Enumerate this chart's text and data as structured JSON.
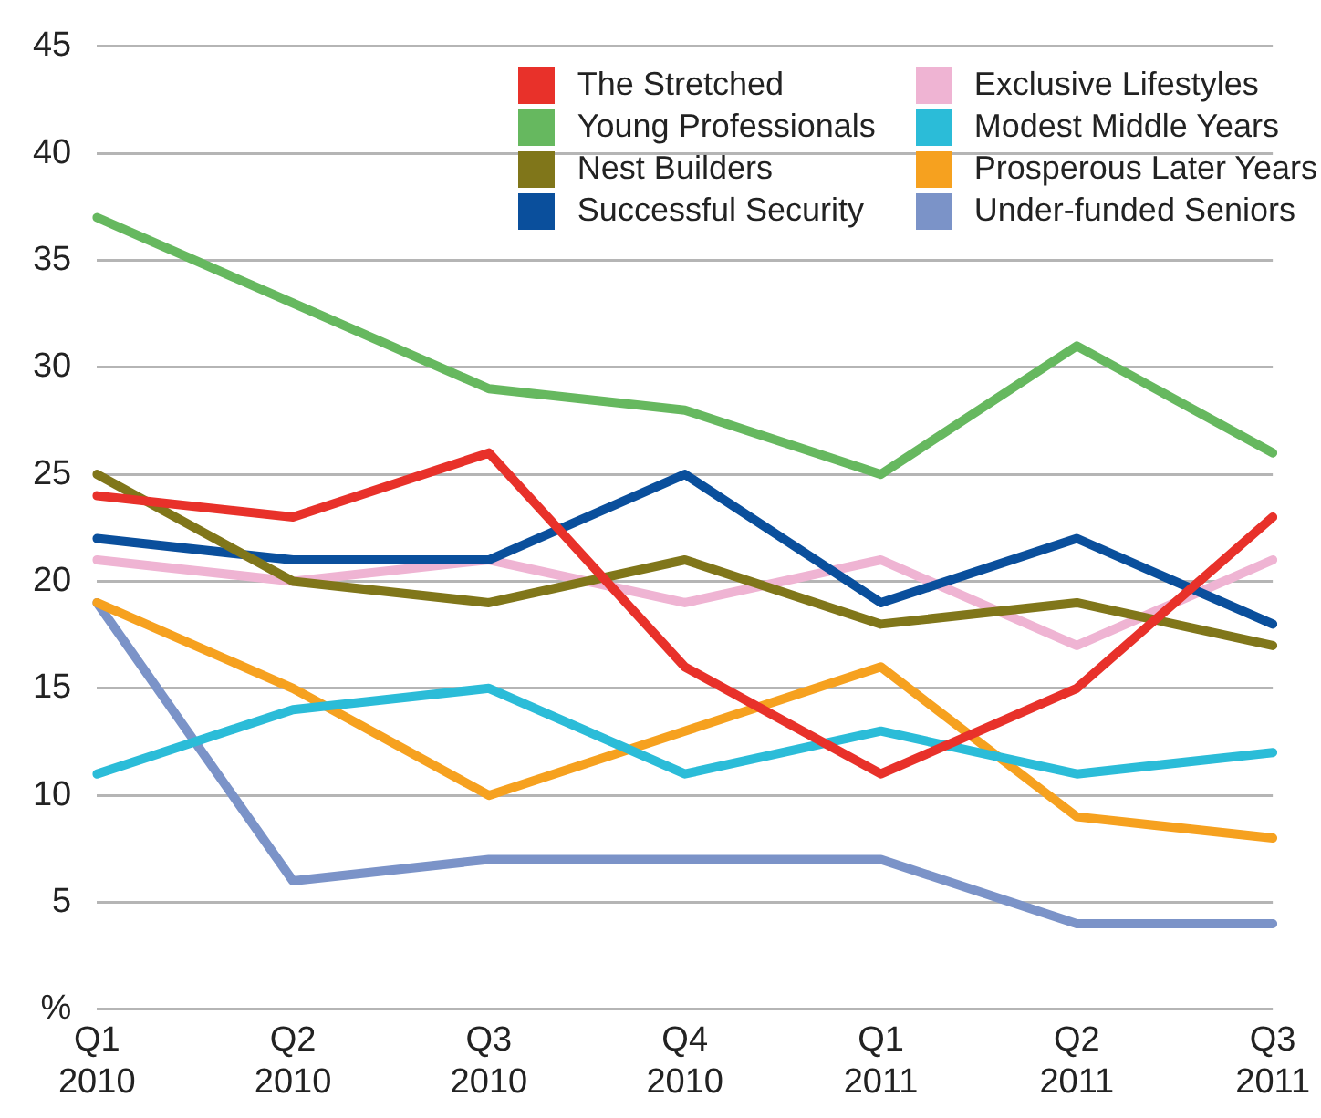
{
  "chart_data": {
    "type": "line",
    "categories": [
      "Q1 2010",
      "Q2 2010",
      "Q3 2010",
      "Q4 2010",
      "Q1 2011",
      "Q2 2011",
      "Q3 2011"
    ],
    "ylim": [
      0,
      45
    ],
    "yticks": [
      {
        "value": 0,
        "label": "%"
      },
      5,
      10,
      15,
      20,
      25,
      30,
      35,
      40,
      45
    ],
    "grid": "y",
    "legend": "top right",
    "marker": "none",
    "line_style": "solid",
    "series": [
      {
        "name": "The Stretched",
        "color": "#e8312a",
        "values": [
          24,
          23,
          26,
          16,
          11,
          15,
          23
        ]
      },
      {
        "name": "Young Professionals",
        "color": "#66b85f",
        "values": [
          37,
          33,
          29,
          28,
          25,
          31,
          26
        ]
      },
      {
        "name": "Nest Builders",
        "color": "#80761a",
        "values": [
          25,
          20,
          19,
          21,
          18,
          19,
          17
        ]
      },
      {
        "name": "Successful Security",
        "color": "#0a4f9c",
        "values": [
          22,
          21,
          21,
          25,
          19,
          22,
          18
        ]
      },
      {
        "name": "Exclusive Lifestyles",
        "color": "#efb4d3",
        "values": [
          21,
          20,
          21,
          19,
          21,
          17,
          21
        ]
      },
      {
        "name": "Modest Middle Years",
        "color": "#2bbcd8",
        "values": [
          11,
          14,
          15,
          11,
          13,
          11,
          12
        ]
      },
      {
        "name": "Prosperous Later Years",
        "color": "#f6a11f",
        "values": [
          19,
          15,
          10,
          13,
          16,
          9,
          8
        ]
      },
      {
        "name": "Under-funded Seniors",
        "color": "#7b93c8",
        "values": [
          19,
          6,
          7,
          7,
          7,
          4,
          4
        ]
      }
    ]
  }
}
